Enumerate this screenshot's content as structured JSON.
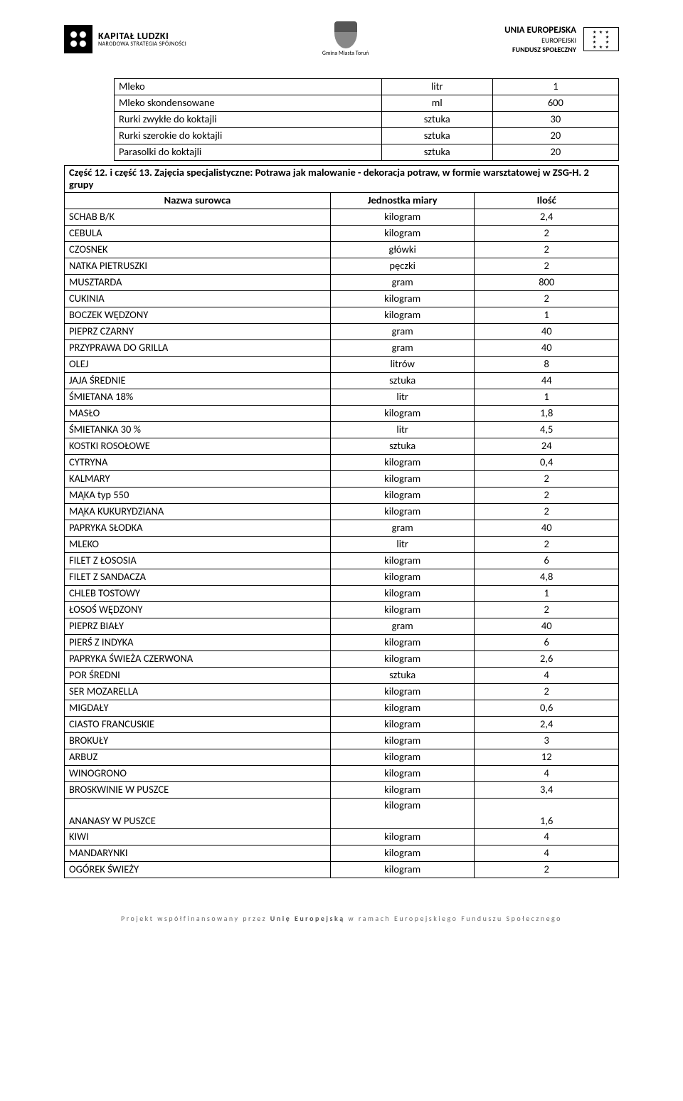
{
  "header": {
    "left": {
      "line1": "KAPITAŁ LUDZKI",
      "line2": "NARODOWA STRATEGIA SPÓJNOŚCI"
    },
    "center": {
      "caption": "Gmina Miasta Toruń"
    },
    "right": {
      "line1": "UNIA EUROPEJSKA",
      "line2": "EUROPEJSKI",
      "line3": "FUNDUSZ SPOŁECZNY"
    }
  },
  "topTable": {
    "rows": [
      {
        "name": "Mleko",
        "unit": "litr",
        "qty": "1"
      },
      {
        "name": "Mleko skondensowane",
        "unit": "ml",
        "qty": "600"
      },
      {
        "name": "Rurki zwykłe do koktajli",
        "unit": "sztuka",
        "qty": "30"
      },
      {
        "name": "Rurki szerokie do koktajli",
        "unit": "sztuka",
        "qty": "20"
      },
      {
        "name": "Parasolki do koktajli",
        "unit": "sztuka",
        "qty": "20"
      }
    ]
  },
  "section": {
    "title": "Część 12. i część 13. Zajęcia specjalistyczne: Potrawa jak malowanie - dekoracja potraw, w formie warsztatowej w ZSG-H. 2 grupy",
    "headers": {
      "name": "Nazwa surowca",
      "unit": "Jednostka miary",
      "qty": "Ilość"
    },
    "rows": [
      {
        "name": "SCHAB B/K",
        "unit": "kilogram",
        "qty": "2,4"
      },
      {
        "name": "CEBULA",
        "unit": "kilogram",
        "qty": "2"
      },
      {
        "name": "CZOSNEK",
        "unit": "główki",
        "qty": "2"
      },
      {
        "name": "NATKA PIETRUSZKI",
        "unit": "pęczki",
        "qty": "2"
      },
      {
        "name": "MUSZTARDA",
        "unit": "gram",
        "qty": "800"
      },
      {
        "name": "CUKINIA",
        "unit": "kilogram",
        "qty": "2"
      },
      {
        "name": "BOCZEK WĘDZONY",
        "unit": "kilogram",
        "qty": "1"
      },
      {
        "name": "PIEPRZ CZARNY",
        "unit": "gram",
        "qty": "40"
      },
      {
        "name": "PRZYPRAWA DO GRILLA",
        "unit": "gram",
        "qty": "40"
      },
      {
        "name": "OLEJ",
        "unit": "litrów",
        "qty": "8"
      },
      {
        "name": "JAJA ŚREDNIE",
        "unit": "sztuka",
        "qty": "44"
      },
      {
        "name": "ŚMIETANA 18%",
        "unit": "litr",
        "qty": "1"
      },
      {
        "name": "MASŁO",
        "unit": "kilogram",
        "qty": "1,8"
      },
      {
        "name": "ŚMIETANKA 30 %",
        "unit": "litr",
        "qty": "4,5"
      },
      {
        "name": "KOSTKI ROSOŁOWE",
        "unit": "sztuka",
        "qty": "24"
      },
      {
        "name": "CYTRYNA",
        "unit": "kilogram",
        "qty": "0,4"
      },
      {
        "name": "KALMARY",
        "unit": "kilogram",
        "qty": "2"
      },
      {
        "name": "MĄKA typ 550",
        "unit": "kilogram",
        "qty": "2"
      },
      {
        "name": "MĄKA KUKURYDZIANA",
        "unit": "kilogram",
        "qty": "2"
      },
      {
        "name": "PAPRYKA SŁODKA",
        "unit": "gram",
        "qty": "40"
      },
      {
        "name": "MLEKO",
        "unit": "litr",
        "qty": "2"
      },
      {
        "name": "FILET Z ŁOSOSIA",
        "unit": "kilogram",
        "qty": "6"
      },
      {
        "name": "FILET Z SANDACZA",
        "unit": "kilogram",
        "qty": "4,8"
      },
      {
        "name": "CHLEB TOSTOWY",
        "unit": "kilogram",
        "qty": "1"
      },
      {
        "name": "ŁOSOŚ WĘDZONY",
        "unit": "kilogram",
        "qty": "2"
      },
      {
        "name": "PIEPRZ BIAŁY",
        "unit": "gram",
        "qty": "40"
      },
      {
        "name": "PIERŚ Z INDYKA",
        "unit": "kilogram",
        "qty": "6"
      },
      {
        "name": "PAPRYKA ŚWIEŻA CZERWONA",
        "unit": "kilogram",
        "qty": "2,6"
      },
      {
        "name": "POR ŚREDNI",
        "unit": "sztuka",
        "qty": "4"
      },
      {
        "name": "SER MOZARELLA",
        "unit": "kilogram",
        "qty": "2"
      },
      {
        "name": "MIGDAŁY",
        "unit": "kilogram",
        "qty": "0,6"
      },
      {
        "name": "CIASTO FRANCUSKIE",
        "unit": "kilogram",
        "qty": "2,4"
      },
      {
        "name": "BROKUŁY",
        "unit": "kilogram",
        "qty": "3"
      },
      {
        "name": "ARBUZ",
        "unit": "kilogram",
        "qty": "12"
      },
      {
        "name": "WINOGRONO",
        "unit": "kilogram",
        "qty": "4"
      },
      {
        "name": "BROSKWINIE W PUSZCE",
        "unit": "kilogram",
        "qty": "3,4"
      },
      {
        "name": "ANANASY W PUSZCE",
        "unit": "kilogram",
        "qty": "1,6",
        "unitTop": true
      },
      {
        "name": "KIWI",
        "unit": "kilogram",
        "qty": "4"
      },
      {
        "name": "MANDARYNKI",
        "unit": "kilogram",
        "qty": "4"
      },
      {
        "name": "OGÓREK ŚWIEŻY",
        "unit": "kilogram",
        "qty": "2"
      }
    ]
  },
  "footer": {
    "text_prefix": "Projekt współfinansowany przez ",
    "text_bold": "Unię Europejską",
    "text_suffix": " w ramach Europejskiego Funduszu Społecznego"
  }
}
